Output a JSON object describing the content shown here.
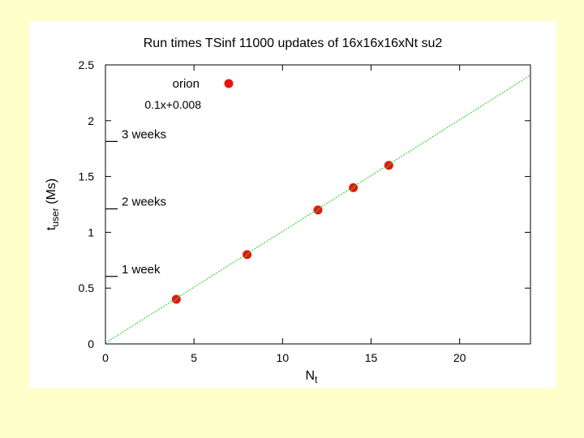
{
  "chart_data": {
    "type": "scatter",
    "title": "Run times TSinf 11000 updates of 16x16x16xNt su2",
    "xlabel": {
      "main": "N",
      "sub": "t"
    },
    "ylabel": {
      "main": "t",
      "sub": "user",
      "suffix": " (Ms)"
    },
    "xlim": [
      0,
      24
    ],
    "ylim": [
      0,
      2.5
    ],
    "xticks": [
      0,
      5,
      10,
      15,
      20
    ],
    "yticks": [
      0,
      0.5,
      1,
      1.5,
      2,
      2.5
    ],
    "grid": false,
    "series": [
      {
        "name": "orion",
        "kind": "points",
        "color": "#ee1111",
        "x": [
          4,
          8,
          12,
          14,
          16
        ],
        "y": [
          0.4,
          0.8,
          1.2,
          1.4,
          1.6
        ]
      },
      {
        "name": "0.1x+0.008",
        "kind": "line",
        "color": "#22cc22",
        "slope": 0.1,
        "intercept": 0.008
      }
    ],
    "annotations": [
      {
        "label": "3 weeks",
        "y": 1.814
      },
      {
        "label": "2 weeks",
        "y": 1.21
      },
      {
        "label": "1 week",
        "y": 0.605
      }
    ],
    "legend": {
      "position": "top-left",
      "orion_label": "orion",
      "fit_label": "0.1x+0.008"
    }
  }
}
